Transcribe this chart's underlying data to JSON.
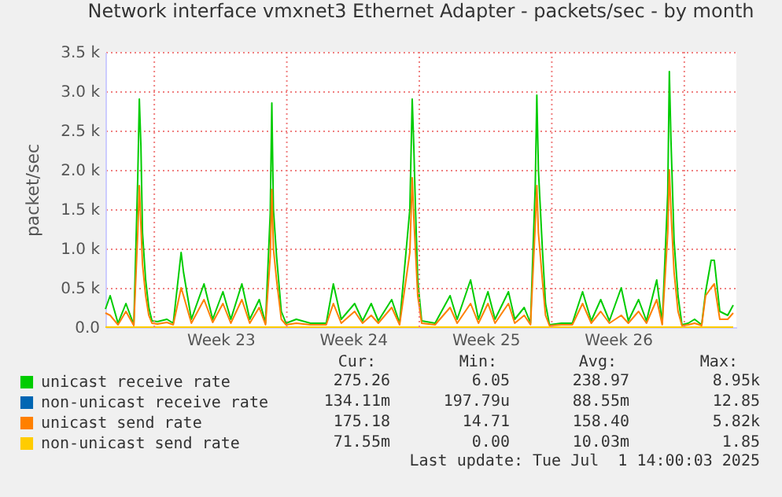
{
  "chart_data": {
    "type": "line",
    "title": "Network interface vmxnet3 Ethernet Adapter - packets/sec - by month",
    "ylabel": "packet/sec",
    "x": [
      "2025-05-29T10:00",
      "2025-05-29T16:00",
      "2025-05-30T02:00",
      "2025-05-30T12:00",
      "2025-05-30T22:00",
      "2025-05-31T03:00",
      "2025-05-31T05:00",
      "2025-05-31T07:00",
      "2025-05-31T09:00",
      "2025-05-31T13:00",
      "2025-05-31T17:00",
      "2025-05-31T21:00",
      "2025-06-01T04:00",
      "2025-06-01T16:00",
      "2025-06-02T00:00",
      "2025-06-02T10:00",
      "2025-06-02T13:00",
      "2025-06-02T23:00",
      "2025-06-03T15:00",
      "2025-06-04T02:00",
      "2025-06-04T15:00",
      "2025-06-05T01:00",
      "2025-06-05T15:00",
      "2025-06-06T01:00",
      "2025-06-06T13:00",
      "2025-06-06T21:00",
      "2025-06-07T03:00",
      "2025-06-07T05:00",
      "2025-06-07T07:00",
      "2025-06-07T11:00",
      "2025-06-07T17:00",
      "2025-06-07T23:00",
      "2025-06-08T12:00",
      "2025-06-09T06:00",
      "2025-06-10T02:00",
      "2025-06-10T11:00",
      "2025-06-10T21:00",
      "2025-06-11T14:00",
      "2025-06-12T00:00",
      "2025-06-12T11:00",
      "2025-06-12T20:00",
      "2025-06-13T13:00",
      "2025-06-13T23:00",
      "2025-06-14T12:00",
      "2025-06-14T15:00",
      "2025-06-14T17:00",
      "2025-06-14T19:00",
      "2025-06-14T22:00",
      "2025-06-15T03:00",
      "2025-06-15T20:00",
      "2025-06-16T15:00",
      "2025-06-17T00:00",
      "2025-06-17T17:00",
      "2025-06-18T03:00",
      "2025-06-18T15:00",
      "2025-06-19T00:00",
      "2025-06-19T17:00",
      "2025-06-20T01:00",
      "2025-06-20T13:00",
      "2025-06-20T21:00",
      "2025-06-21T03:00",
      "2025-06-21T05:00",
      "2025-06-21T07:00",
      "2025-06-21T12:00",
      "2025-06-21T16:00",
      "2025-06-21T21:00",
      "2025-06-22T12:00",
      "2025-06-23T02:00",
      "2025-06-23T15:00",
      "2025-06-24T02:00",
      "2025-06-24T14:00",
      "2025-06-25T01:00",
      "2025-06-25T16:00",
      "2025-06-26T01:00",
      "2025-06-26T14:00",
      "2025-06-27T00:00",
      "2025-06-27T13:00",
      "2025-06-27T20:00",
      "2025-06-28T03:00",
      "2025-06-28T05:00",
      "2025-06-28T07:00",
      "2025-06-28T11:00",
      "2025-06-28T16:00",
      "2025-06-28T21:00",
      "2025-06-29T05:00",
      "2025-06-29T13:00",
      "2025-06-29T22:00",
      "2025-06-30T03:00",
      "2025-06-30T10:00",
      "2025-06-30T14:00",
      "2025-06-30T21:00",
      "2025-07-01T07:00",
      "2025-07-01T14:00"
    ],
    "series": [
      {
        "name": "unicast receive rate",
        "color": "#00cc00",
        "values": [
          230,
          400,
          50,
          300,
          30,
          1900,
          2900,
          2300,
          1200,
          600,
          250,
          80,
          70,
          100,
          50,
          950,
          700,
          100,
          550,
          100,
          450,
          100,
          550,
          100,
          350,
          50,
          1450,
          2850,
          1500,
          900,
          200,
          50,
          100,
          50,
          50,
          550,
          100,
          300,
          80,
          300,
          80,
          350,
          50,
          1500,
          2900,
          2300,
          1550,
          600,
          80,
          50,
          400,
          100,
          600,
          100,
          450,
          100,
          450,
          100,
          250,
          50,
          1800,
          2950,
          2000,
          1000,
          300,
          30,
          50,
          50,
          450,
          80,
          350,
          80,
          500,
          80,
          350,
          80,
          600,
          50,
          1700,
          3250,
          2400,
          1100,
          400,
          30,
          50,
          100,
          30,
          450,
          850,
          850,
          200,
          150,
          280
        ]
      },
      {
        "name": "non-unicast receive rate",
        "color": "#0066b3",
        "values": [
          null,
          null,
          null,
          null,
          null,
          null,
          null,
          null,
          null,
          null,
          null,
          null,
          null,
          null,
          null,
          null,
          null,
          null,
          null,
          null,
          null,
          null,
          null,
          null,
          null,
          null,
          null,
          null,
          null,
          null,
          null,
          null,
          null,
          null,
          null,
          null,
          null,
          null,
          null,
          null,
          null,
          null,
          null,
          null,
          null,
          null,
          null,
          null,
          null,
          null,
          null,
          null,
          null,
          null,
          null,
          null,
          null,
          null,
          null,
          null,
          null,
          null,
          null,
          null,
          null,
          null,
          null,
          null,
          null,
          null,
          null,
          null,
          null,
          null,
          null,
          null,
          null,
          null,
          null,
          null,
          null,
          null,
          null,
          null,
          null,
          null,
          null,
          null,
          null,
          null,
          null,
          null,
          null
        ]
      },
      {
        "name": "unicast send rate",
        "color": "#ff8000",
        "values": [
          180,
          150,
          30,
          200,
          20,
          1200,
          1800,
          1300,
          800,
          400,
          150,
          50,
          40,
          60,
          30,
          500,
          400,
          50,
          350,
          60,
          300,
          50,
          350,
          50,
          250,
          30,
          900,
          1750,
          1000,
          600,
          100,
          30,
          50,
          30,
          30,
          300,
          50,
          200,
          50,
          150,
          50,
          250,
          30,
          950,
          1900,
          1400,
          1000,
          400,
          50,
          30,
          250,
          50,
          300,
          50,
          300,
          50,
          300,
          50,
          150,
          30,
          1300,
          1800,
          1200,
          600,
          150,
          20,
          30,
          30,
          300,
          50,
          200,
          50,
          150,
          50,
          200,
          50,
          350,
          30,
          1200,
          2000,
          1500,
          700,
          200,
          20,
          30,
          50,
          20,
          400,
          500,
          550,
          100,
          100,
          180
        ]
      },
      {
        "name": "non-unicast send rate",
        "color": "#ffcc00",
        "x": [
          "2025-05-29T10:00",
          "2025-07-01T14:00"
        ],
        "values": [
          0,
          0
        ]
      }
    ],
    "xlim": [
      "2025-05-29T10:00",
      "2025-07-01T18:00"
    ],
    "xticks": [
      {
        "value": "2025-06-04T12:00",
        "label": "Week 23"
      },
      {
        "value": "2025-06-11T12:00",
        "label": "Week 24"
      },
      {
        "value": "2025-06-18T12:00",
        "label": "Week 25"
      },
      {
        "value": "2025-06-25T12:00",
        "label": "Week 26"
      }
    ],
    "ylim": [
      0,
      3500
    ],
    "yticks": [
      {
        "value": 0,
        "label": "0.0"
      },
      {
        "value": 500,
        "label": "0.5 k"
      },
      {
        "value": 1000,
        "label": "1.0 k"
      },
      {
        "value": 1500,
        "label": "1.5 k"
      },
      {
        "value": 2000,
        "label": "2.0 k"
      },
      {
        "value": 2500,
        "label": "2.5 k"
      },
      {
        "value": 3000,
        "label": "3.0 k"
      },
      {
        "value": 3500,
        "label": "3.5 k"
      }
    ],
    "grid": "y",
    "ref_lines": [
      {
        "axis": "x",
        "value": "2025-06-01T00:00",
        "color": "#f08080",
        "line_style": "dotted"
      },
      {
        "axis": "x",
        "value": "2025-06-08T00:00",
        "color": "#f08080",
        "line_style": "dotted"
      },
      {
        "axis": "x",
        "value": "2025-06-15T00:00",
        "color": "#f08080",
        "line_style": "dotted"
      },
      {
        "axis": "x",
        "value": "2025-06-22T00:00",
        "color": "#f08080",
        "line_style": "dotted"
      },
      {
        "axis": "x",
        "value": "2025-06-29T00:00",
        "color": "#f08080",
        "line_style": "dotted"
      }
    ],
    "legend": "bottom",
    "annotations": [
      "Cur:",
      "Min:",
      "Avg:",
      "Max:",
      "275.26",
      "6.05",
      "238.97",
      "8.95k",
      "134.11m",
      "197.79u",
      "88.55m",
      "12.85",
      "175.18",
      "14.71",
      "158.40",
      "5.82k",
      "71.55m",
      "0.00",
      "10.03m",
      "1.85",
      "Last update: Tue Jul  1 14:00:03 2025"
    ]
  }
}
